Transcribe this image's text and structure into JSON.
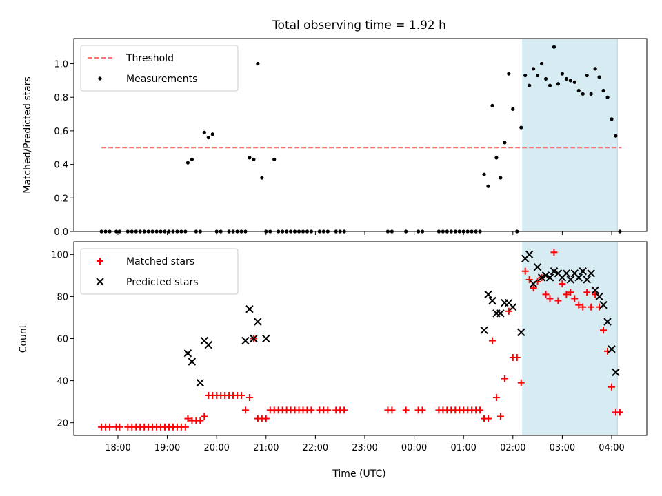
{
  "chart_data": [
    {
      "type": "scatter",
      "title": "Total observing time = 1.92 h",
      "xlabel": "",
      "ylabel": "Matched/Predicted stars",
      "ylim": [
        0,
        1.15
      ],
      "yticks": [
        "0.0",
        "0.2",
        "0.4",
        "0.6",
        "0.8",
        "1.0"
      ],
      "shaded_window": [
        "02:12",
        "04:07"
      ],
      "shade_color": "#add8e6",
      "legend": {
        "placement": "upper left",
        "entries": [
          "Threshold",
          "Measurements"
        ]
      },
      "threshold": {
        "name": "Threshold",
        "value": 0.5,
        "start": "17:40",
        "end": "04:12",
        "color": "#ff7373",
        "style": "dashed"
      },
      "series": [
        {
          "name": "Measurements",
          "color": "#000000",
          "points": [
            [
              "17:40",
              0
            ],
            [
              "17:45",
              0
            ],
            [
              "17:50",
              0
            ],
            [
              "17:58",
              0
            ],
            [
              "18:02",
              0
            ],
            [
              "18:12",
              0
            ],
            [
              "18:17",
              0
            ],
            [
              "18:22",
              0
            ],
            [
              "18:27",
              0
            ],
            [
              "18:32",
              0
            ],
            [
              "18:37",
              0
            ],
            [
              "18:42",
              0
            ],
            [
              "18:47",
              0
            ],
            [
              "18:52",
              0
            ],
            [
              "18:57",
              0
            ],
            [
              "19:02",
              0
            ],
            [
              "19:07",
              0
            ],
            [
              "19:12",
              0
            ],
            [
              "19:17",
              0
            ],
            [
              "19:22",
              0
            ],
            [
              "19:25",
              0.41
            ],
            [
              "19:30",
              0.43
            ],
            [
              "19:35",
              0
            ],
            [
              "19:40",
              0
            ],
            [
              "19:45",
              0.59
            ],
            [
              "19:50",
              0.56
            ],
            [
              "19:55",
              0.58
            ],
            [
              "20:00",
              0
            ],
            [
              "20:05",
              0
            ],
            [
              "20:15",
              0
            ],
            [
              "20:20",
              0
            ],
            [
              "20:25",
              0
            ],
            [
              "20:30",
              0
            ],
            [
              "20:35",
              0
            ],
            [
              "20:40",
              0.44
            ],
            [
              "20:45",
              0.43
            ],
            [
              "20:50",
              1.0
            ],
            [
              "20:55",
              0.32
            ],
            [
              "21:00",
              0
            ],
            [
              "21:05",
              0
            ],
            [
              "21:10",
              0.43
            ],
            [
              "21:15",
              0
            ],
            [
              "21:20",
              0
            ],
            [
              "21:25",
              0
            ],
            [
              "21:30",
              0
            ],
            [
              "21:35",
              0
            ],
            [
              "21:40",
              0
            ],
            [
              "21:45",
              0
            ],
            [
              "21:50",
              0
            ],
            [
              "21:55",
              0
            ],
            [
              "22:05",
              0
            ],
            [
              "22:10",
              0
            ],
            [
              "22:15",
              0
            ],
            [
              "22:25",
              0
            ],
            [
              "22:30",
              0
            ],
            [
              "22:35",
              0
            ],
            [
              "23:28",
              0
            ],
            [
              "23:33",
              0
            ],
            [
              "23:50",
              0
            ],
            [
              "00:05",
              0
            ],
            [
              "00:10",
              0
            ],
            [
              "00:30",
              0
            ],
            [
              "00:35",
              0
            ],
            [
              "00:40",
              0
            ],
            [
              "00:45",
              0
            ],
            [
              "00:50",
              0
            ],
            [
              "00:55",
              0
            ],
            [
              "01:00",
              0
            ],
            [
              "01:05",
              0
            ],
            [
              "01:10",
              0
            ],
            [
              "01:15",
              0
            ],
            [
              "01:20",
              0
            ],
            [
              "01:25",
              0.34
            ],
            [
              "01:30",
              0.27
            ],
            [
              "01:35",
              0.75
            ],
            [
              "01:40",
              0.44
            ],
            [
              "01:45",
              0.32
            ],
            [
              "01:50",
              0.53
            ],
            [
              "01:55",
              0.94
            ],
            [
              "02:00",
              0.73
            ],
            [
              "02:05",
              0
            ],
            [
              "02:10",
              0.62
            ],
            [
              "02:15",
              0.93
            ],
            [
              "02:20",
              0.87
            ],
            [
              "02:25",
              0.97
            ],
            [
              "02:30",
              0.93
            ],
            [
              "02:35",
              1.0
            ],
            [
              "02:40",
              0.91
            ],
            [
              "02:45",
              0.87
            ],
            [
              "02:50",
              1.1
            ],
            [
              "02:55",
              0.88
            ],
            [
              "03:00",
              0.94
            ],
            [
              "03:05",
              0.91
            ],
            [
              "03:10",
              0.9
            ],
            [
              "03:15",
              0.89
            ],
            [
              "03:20",
              0.84
            ],
            [
              "03:25",
              0.82
            ],
            [
              "03:30",
              0.93
            ],
            [
              "03:35",
              0.82
            ],
            [
              "03:40",
              0.97
            ],
            [
              "03:45",
              0.92
            ],
            [
              "03:50",
              0.84
            ],
            [
              "03:55",
              0.8
            ],
            [
              "04:00",
              0.67
            ],
            [
              "04:05",
              0.57
            ],
            [
              "04:10",
              0
            ]
          ]
        }
      ]
    },
    {
      "type": "scatter",
      "title": "",
      "xlabel": "Time (UTC)",
      "ylabel": "Count",
      "ylim": [
        14,
        106
      ],
      "yticks": [
        "20",
        "40",
        "60",
        "80",
        "100"
      ],
      "xticks": [
        "18:00",
        "19:00",
        "20:00",
        "21:00",
        "22:00",
        "23:00",
        "00:00",
        "01:00",
        "02:00",
        "03:00",
        "04:00"
      ],
      "shaded_window": [
        "02:12",
        "04:07"
      ],
      "legend": {
        "placement": "upper left",
        "entries": [
          "Matched stars",
          "Predicted stars"
        ]
      },
      "series": [
        {
          "name": "Matched stars",
          "marker": "plus",
          "color": "#ff0000",
          "points": [
            [
              "17:40",
              18
            ],
            [
              "17:45",
              18
            ],
            [
              "17:50",
              18
            ],
            [
              "17:58",
              18
            ],
            [
              "18:02",
              18
            ],
            [
              "18:12",
              18
            ],
            [
              "18:17",
              18
            ],
            [
              "18:22",
              18
            ],
            [
              "18:27",
              18
            ],
            [
              "18:32",
              18
            ],
            [
              "18:37",
              18
            ],
            [
              "18:42",
              18
            ],
            [
              "18:47",
              18
            ],
            [
              "18:52",
              18
            ],
            [
              "18:57",
              18
            ],
            [
              "19:02",
              18
            ],
            [
              "19:07",
              18
            ],
            [
              "19:12",
              18
            ],
            [
              "19:17",
              18
            ],
            [
              "19:22",
              18
            ],
            [
              "19:25",
              22
            ],
            [
              "19:30",
              21
            ],
            [
              "19:35",
              21
            ],
            [
              "19:40",
              21
            ],
            [
              "19:45",
              23
            ],
            [
              "19:50",
              33
            ],
            [
              "19:55",
              33
            ],
            [
              "20:00",
              33
            ],
            [
              "20:05",
              33
            ],
            [
              "20:10",
              33
            ],
            [
              "20:15",
              33
            ],
            [
              "20:20",
              33
            ],
            [
              "20:25",
              33
            ],
            [
              "20:30",
              33
            ],
            [
              "20:35",
              26
            ],
            [
              "20:40",
              32
            ],
            [
              "20:45",
              60
            ],
            [
              "20:50",
              22
            ],
            [
              "20:55",
              22
            ],
            [
              "21:00",
              22
            ],
            [
              "21:05",
              26
            ],
            [
              "21:10",
              26
            ],
            [
              "21:15",
              26
            ],
            [
              "21:20",
              26
            ],
            [
              "21:25",
              26
            ],
            [
              "21:30",
              26
            ],
            [
              "21:35",
              26
            ],
            [
              "21:40",
              26
            ],
            [
              "21:45",
              26
            ],
            [
              "21:50",
              26
            ],
            [
              "21:55",
              26
            ],
            [
              "22:05",
              26
            ],
            [
              "22:10",
              26
            ],
            [
              "22:15",
              26
            ],
            [
              "22:25",
              26
            ],
            [
              "22:30",
              26
            ],
            [
              "22:35",
              26
            ],
            [
              "23:28",
              26
            ],
            [
              "23:33",
              26
            ],
            [
              "23:50",
              26
            ],
            [
              "00:05",
              26
            ],
            [
              "00:10",
              26
            ],
            [
              "00:30",
              26
            ],
            [
              "00:35",
              26
            ],
            [
              "00:40",
              26
            ],
            [
              "00:45",
              26
            ],
            [
              "00:50",
              26
            ],
            [
              "00:55",
              26
            ],
            [
              "01:00",
              26
            ],
            [
              "01:05",
              26
            ],
            [
              "01:10",
              26
            ],
            [
              "01:15",
              26
            ],
            [
              "01:20",
              26
            ],
            [
              "01:25",
              22
            ],
            [
              "01:30",
              22
            ],
            [
              "01:35",
              59
            ],
            [
              "01:40",
              32
            ],
            [
              "01:45",
              23
            ],
            [
              "01:50",
              41
            ],
            [
              "01:55",
              73
            ],
            [
              "02:00",
              51
            ],
            [
              "02:05",
              51
            ],
            [
              "02:10",
              39
            ],
            [
              "02:15",
              92
            ],
            [
              "02:20",
              88
            ],
            [
              "02:25",
              84
            ],
            [
              "02:30",
              87
            ],
            [
              "02:35",
              89
            ],
            [
              "02:40",
              81
            ],
            [
              "02:45",
              79
            ],
            [
              "02:50",
              101
            ],
            [
              "02:55",
              78
            ],
            [
              "03:00",
              86
            ],
            [
              "03:05",
              81
            ],
            [
              "03:10",
              82
            ],
            [
              "03:15",
              79
            ],
            [
              "03:20",
              76
            ],
            [
              "03:25",
              75
            ],
            [
              "03:30",
              82
            ],
            [
              "03:35",
              75
            ],
            [
              "03:40",
              81
            ],
            [
              "03:45",
              75
            ],
            [
              "03:50",
              64
            ],
            [
              "03:55",
              54
            ],
            [
              "04:00",
              37
            ],
            [
              "04:05",
              25
            ],
            [
              "04:10",
              25
            ]
          ]
        },
        {
          "name": "Predicted stars",
          "marker": "x",
          "color": "#000000",
          "points": [
            [
              "19:25",
              53
            ],
            [
              "19:30",
              49
            ],
            [
              "19:40",
              39
            ],
            [
              "19:45",
              59
            ],
            [
              "19:50",
              57
            ],
            [
              "20:35",
              59
            ],
            [
              "20:40",
              74
            ],
            [
              "20:45",
              60
            ],
            [
              "20:50",
              68
            ],
            [
              "21:00",
              60
            ],
            [
              "01:25",
              64
            ],
            [
              "01:30",
              81
            ],
            [
              "01:35",
              78
            ],
            [
              "01:40",
              72
            ],
            [
              "01:45",
              72
            ],
            [
              "01:50",
              77
            ],
            [
              "01:55",
              77
            ],
            [
              "02:00",
              75
            ],
            [
              "02:10",
              63
            ],
            [
              "02:15",
              98
            ],
            [
              "02:20",
              100
            ],
            [
              "02:25",
              86
            ],
            [
              "02:30",
              94
            ],
            [
              "02:35",
              89
            ],
            [
              "02:40",
              90
            ],
            [
              "02:45",
              89
            ],
            [
              "02:50",
              92
            ],
            [
              "02:55",
              91
            ],
            [
              "03:00",
              89
            ],
            [
              "03:05",
              91
            ],
            [
              "03:10",
              88
            ],
            [
              "03:15",
              91
            ],
            [
              "03:20",
              89
            ],
            [
              "03:25",
              92
            ],
            [
              "03:30",
              88
            ],
            [
              "03:35",
              91
            ],
            [
              "03:40",
              83
            ],
            [
              "03:45",
              80
            ],
            [
              "03:50",
              76
            ],
            [
              "03:55",
              68
            ],
            [
              "04:00",
              55
            ],
            [
              "04:05",
              44
            ]
          ]
        }
      ]
    }
  ]
}
